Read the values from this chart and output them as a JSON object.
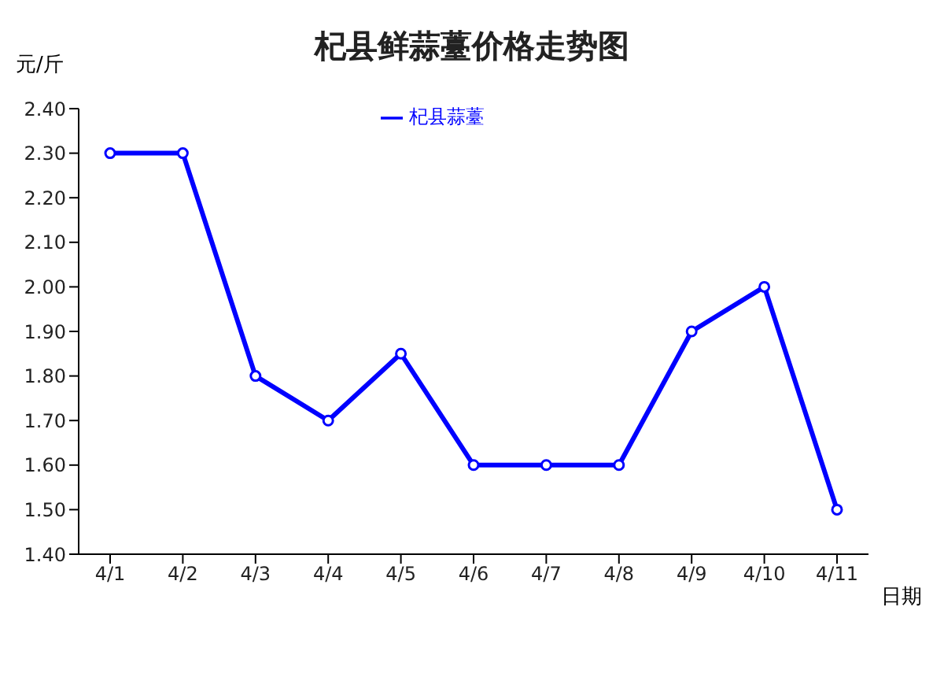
{
  "chart_data": {
    "type": "line",
    "title": "杞县鲜蒜薹价格走势图",
    "ylabel": "元/斤",
    "xlabel": "日期",
    "categories": [
      "4/1",
      "4/2",
      "4/3",
      "4/4",
      "4/5",
      "4/6",
      "4/7",
      "4/8",
      "4/9",
      "4/10",
      "4/11"
    ],
    "series": [
      {
        "name": "杞县蒜薹",
        "color": "#0000ff",
        "values": [
          2.3,
          2.3,
          1.8,
          1.7,
          1.85,
          1.6,
          1.6,
          1.6,
          1.9,
          2.0,
          1.5
        ]
      }
    ],
    "ylim": [
      1.4,
      2.4
    ],
    "yticks": [
      {
        "value": 1.4,
        "label": "1.40"
      },
      {
        "value": 1.5,
        "label": "1.50"
      },
      {
        "value": 1.6,
        "label": "1.60"
      },
      {
        "value": 1.7,
        "label": "1.70"
      },
      {
        "value": 1.8,
        "label": "1.80"
      },
      {
        "value": 1.9,
        "label": "1.90"
      },
      {
        "value": 2.0,
        "label": "2.00"
      },
      {
        "value": 2.1,
        "label": "2.10"
      },
      {
        "value": 2.2,
        "label": "2.20"
      },
      {
        "value": 2.3,
        "label": "2.30"
      },
      {
        "value": 2.4,
        "label": "2.40"
      }
    ],
    "grid": false,
    "legend": "top",
    "marker": "circle",
    "line_style": "solid"
  }
}
